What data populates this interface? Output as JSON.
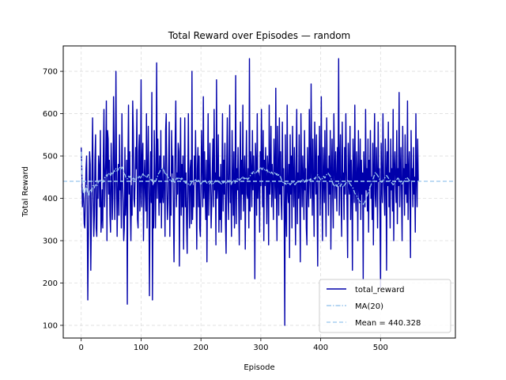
{
  "chart_data": {
    "type": "line",
    "title": "Total Reward over Episodes — random",
    "xlabel": "Episode",
    "ylabel": "Total Reward",
    "xlim": [
      -30,
      625
    ],
    "ylim": [
      70,
      760
    ],
    "x_ticks": [
      0,
      100,
      200,
      300,
      400,
      500
    ],
    "y_ticks": [
      100,
      200,
      300,
      400,
      500,
      600,
      700
    ],
    "grid": true,
    "legend_position": "lower right",
    "colors": {
      "total_reward": "#0000aa",
      "ma": "#9ec8ee",
      "mean": "#a8cff0"
    },
    "series": [
      {
        "name": "total_reward",
        "style": "solid",
        "x_start": 0,
        "x_step": 1,
        "values": [
          520,
          470,
          380,
          420,
          400,
          340,
          330,
          400,
          470,
          500,
          380,
          160,
          300,
          420,
          510,
          480,
          230,
          350,
          450,
          590,
          420,
          310,
          360,
          490,
          550,
          330,
          310,
          440,
          400,
          500,
          470,
          380,
          560,
          320,
          350,
          420,
          330,
          510,
          610,
          380,
          440,
          490,
          630,
          300,
          560,
          540,
          410,
          490,
          360,
          320,
          530,
          450,
          350,
          410,
          640,
          520,
          350,
          430,
          700,
          470,
          310,
          410,
          480,
          360,
          550,
          420,
          440,
          330,
          600,
          450,
          390,
          300,
          330,
          520,
          360,
          410,
          490,
          150,
          480,
          620,
          410,
          510,
          380,
          300,
          430,
          360,
          630,
          560,
          400,
          380,
          440,
          520,
          470,
          610,
          350,
          330,
          510,
          550,
          370,
          440,
          680,
          380,
          480,
          530,
          300,
          430,
          490,
          410,
          370,
          600,
          330,
          450,
          570,
          420,
          170,
          410,
          510,
          390,
          650,
          160,
          430,
          330,
          560,
          460,
          330,
          440,
          720,
          400,
          540,
          450,
          360,
          500,
          390,
          560,
          330,
          470,
          410,
          390,
          500,
          440,
          310,
          560,
          600,
          420,
          350,
          390,
          480,
          580,
          310,
          450,
          360,
          560,
          460,
          500,
          380,
          250,
          420,
          540,
          630,
          380,
          460,
          410,
          530,
          510,
          240,
          440,
          590,
          360,
          480,
          380,
          500,
          280,
          440,
          590,
          380,
          460,
          340,
          270,
          440,
          600,
          410,
          330,
          470,
          490,
          340,
          700,
          350,
          430,
          380,
          500,
          440,
          560,
          420,
          280,
          470,
          520,
          380,
          500,
          330,
          310,
          430,
          560,
          470,
          380,
          640,
          400,
          510,
          420,
          350,
          490,
          250,
          440,
          600,
          360,
          450,
          530,
          430,
          330,
          390,
          470,
          540,
          380,
          610,
          420,
          460,
          290,
          680,
          400,
          430,
          550,
          320,
          450,
          350,
          480,
          320,
          420,
          600,
          370,
          490,
          410,
          530,
          340,
          270,
          470,
          590,
          420,
          350,
          480,
          620,
          390,
          430,
          310,
          560,
          450,
          360,
          510,
          330,
          420,
          690,
          340,
          470,
          420,
          520,
          400,
          290,
          460,
          580,
          350,
          490,
          410,
          620,
          370,
          440,
          500,
          280,
          450,
          560,
          410,
          400,
          470,
          330,
          730,
          370,
          510,
          460,
          380,
          560,
          420,
          500,
          440,
          210,
          530,
          480,
          360,
          600,
          400,
          460,
          450,
          320,
          510,
          430,
          610,
          480,
          380,
          560,
          300,
          490,
          430,
          520,
          440,
          340,
          500,
          470,
          290,
          620,
          410,
          450,
          570,
          380,
          480,
          430,
          350,
          540,
          460,
          400,
          660,
          420,
          300,
          570,
          460,
          360,
          590,
          410,
          510,
          390,
          350,
          580,
          430,
          470,
          360,
          100,
          550,
          370,
          310,
          620,
          420,
          390,
          480,
          260,
          550,
          410,
          500,
          330,
          570,
          450,
          380,
          520,
          430,
          290,
          490,
          610,
          340,
          460,
          400,
          550,
          410,
          250,
          600,
          460,
          380,
          500,
          440,
          350,
          560,
          420,
          470,
          330,
          290,
          520,
          440,
          380,
          610,
          450,
          400,
          670,
          470,
          360,
          540,
          430,
          310,
          580,
          480,
          410,
          550,
          390,
          240,
          500,
          440,
          570,
          360,
          460,
          640,
          410,
          300,
          520,
          450,
          390,
          560,
          430,
          310,
          590,
          440,
          470,
          360,
          500,
          410,
          560,
          280,
          460,
          540,
          420,
          330,
          600,
          480,
          400,
          510,
          440,
          370,
          520,
          430,
          730,
          360,
          470,
          550,
          400,
          310,
          580,
          430,
          460,
          350,
          520,
          410,
          600,
          470,
          380,
          260,
          530,
          440,
          410,
          570,
          350,
          490,
          430,
          230,
          540,
          460,
          390,
          620,
          420,
          370,
          510,
          460,
          300,
          560,
          430,
          390,
          540,
          350,
          490,
          410,
          460,
          210,
          510,
          440,
          380,
          610,
          420,
          470,
          370,
          540,
          320,
          490,
          430,
          560,
          400,
          450,
          350,
          530,
          290,
          470,
          600,
          410,
          380,
          520,
          450,
          330,
          580,
          440,
          470,
          360,
          190,
          530,
          430,
          390,
          600,
          460,
          410,
          360,
          540,
          470,
          230,
          510,
          430,
          580,
          380,
          460,
          330,
          540,
          420,
          470,
          370,
          610,
          300,
          470,
          510,
          440,
          390,
          560,
          340,
          470,
          430,
          650,
          380,
          450,
          520,
          410,
          300,
          570,
          440,
          470,
          360,
          550,
          410,
          480,
          390,
          630,
          350,
          460,
          510,
          420,
          260,
          560,
          440,
          470,
          380,
          520,
          410,
          450,
          320,
          600,
          450,
          380,
          540,
          440
        ]
      },
      {
        "name": "MA(20)",
        "style": "dashdot",
        "x_start": 0,
        "x_step": 1,
        "values": [
          510,
          470,
          440,
          420,
          410,
          410,
          410,
          420,
          425,
          430,
          420,
          410,
          405,
          410,
          420,
          420,
          415,
          415,
          420,
          430,
          430,
          428,
          425,
          430,
          432,
          430,
          428,
          432,
          436,
          440,
          442,
          440,
          444,
          442,
          440,
          442,
          438,
          440,
          445,
          448,
          450,
          452,
          455,
          452,
          456,
          458,
          456,
          460,
          458,
          454,
          458,
          462,
          458,
          456,
          462,
          466,
          464,
          465,
          470,
          468,
          464,
          466,
          470,
          468,
          472,
          474,
          472,
          470,
          474,
          472,
          468,
          462,
          458,
          456,
          452,
          448,
          448,
          446,
          448,
          452,
          450,
          452,
          450,
          448,
          446,
          442,
          446,
          448,
          446,
          444,
          446,
          448,
          450,
          452,
          450,
          448,
          450,
          452,
          450,
          448,
          452,
          450,
          454,
          458,
          456,
          454,
          456,
          454,
          450,
          452,
          450,
          452,
          456,
          454,
          450,
          446,
          446,
          442,
          444,
          440,
          438,
          436,
          440,
          442,
          440,
          442,
          448,
          450,
          454,
          458,
          460,
          462,
          466,
          468,
          470,
          472,
          470,
          468,
          466,
          462,
          456,
          458,
          460,
          456,
          452,
          450,
          448,
          446,
          444,
          442,
          440,
          442,
          444,
          446,
          444,
          440,
          438,
          440,
          444,
          446,
          448,
          446,
          448,
          450,
          448,
          444,
          446,
          444,
          448,
          446,
          444,
          440,
          438,
          440,
          436,
          438,
          436,
          434,
          432,
          434,
          432,
          430,
          432,
          434,
          436,
          440,
          438,
          440,
          438,
          440,
          442,
          444,
          442,
          440,
          442,
          444,
          442,
          440,
          438,
          436,
          434,
          436,
          438,
          436,
          440,
          438,
          440,
          442,
          440,
          438,
          436,
          438,
          440,
          436,
          434,
          436,
          438,
          436,
          434,
          432,
          434,
          436,
          440,
          438,
          442,
          440,
          444,
          442,
          440,
          442,
          438,
          440,
          436,
          438,
          434,
          436,
          438,
          436,
          440,
          438,
          440,
          438,
          434,
          436,
          440,
          442,
          440,
          438,
          442,
          440,
          438,
          434,
          438,
          440,
          438,
          442,
          438,
          436,
          442,
          440,
          444,
          446,
          448,
          446,
          442,
          444,
          446,
          444,
          448,
          446,
          450,
          448,
          446,
          448,
          444,
          446,
          450,
          448,
          444,
          446,
          448,
          450,
          452,
          456,
          458,
          460,
          458,
          462,
          464,
          462,
          460,
          458,
          460,
          462,
          464,
          466,
          468,
          466,
          470,
          468,
          472,
          470,
          468,
          470,
          472,
          470,
          468,
          466,
          464,
          466,
          468,
          466,
          462,
          460,
          462,
          460,
          458,
          460,
          462,
          460,
          458,
          456,
          458,
          460,
          462,
          458,
          456,
          458,
          454,
          452,
          456,
          454,
          452,
          450,
          446,
          442,
          440,
          438,
          440,
          436,
          434,
          436,
          434,
          432,
          434,
          436,
          434,
          436,
          434,
          432,
          434,
          436,
          438,
          436,
          438,
          436,
          434,
          432,
          434,
          436,
          438,
          440,
          438,
          440,
          442,
          440,
          438,
          440,
          442,
          440,
          444,
          442,
          440,
          438,
          440,
          442,
          444,
          442,
          440,
          444,
          446,
          444,
          442,
          446,
          444,
          442,
          440,
          442,
          444,
          446,
          448,
          446,
          450,
          452,
          454,
          456,
          452,
          450,
          448,
          446,
          444,
          446,
          448,
          446,
          450,
          452,
          450,
          448,
          452,
          454,
          456,
          458,
          460,
          458,
          456,
          454,
          452,
          448,
          444,
          440,
          436,
          432,
          430,
          428,
          432,
          434,
          430,
          428,
          432,
          434,
          436,
          432,
          430,
          428,
          432,
          434,
          430,
          428,
          426,
          430,
          432,
          434,
          436,
          438,
          440,
          442,
          440,
          438,
          436,
          434,
          432,
          430,
          428,
          426,
          424,
          420,
          416,
          412,
          410,
          408,
          406,
          404,
          400,
          398,
          396,
          394,
          392,
          390,
          388,
          386,
          384,
          386,
          388,
          390,
          392,
          396,
          400,
          404,
          408,
          412,
          416,
          420,
          424,
          428,
          432,
          436,
          440,
          444,
          448,
          452,
          456,
          460,
          462,
          458,
          456,
          454,
          452,
          448,
          446,
          444,
          442,
          440,
          438,
          440,
          442,
          444,
          446,
          448,
          450,
          452,
          454,
          452,
          450,
          448,
          446,
          444,
          442,
          440,
          438,
          436,
          434,
          432,
          434,
          436,
          438,
          440,
          442,
          444,
          446,
          448,
          446,
          444,
          442,
          440,
          438,
          436,
          434,
          436,
          438,
          440,
          442,
          444,
          446,
          448,
          450,
          448,
          446,
          444,
          442,
          440
        ]
      },
      {
        "name": "Mean = 440.328",
        "style": "dashed",
        "constant": 440.328
      }
    ]
  }
}
